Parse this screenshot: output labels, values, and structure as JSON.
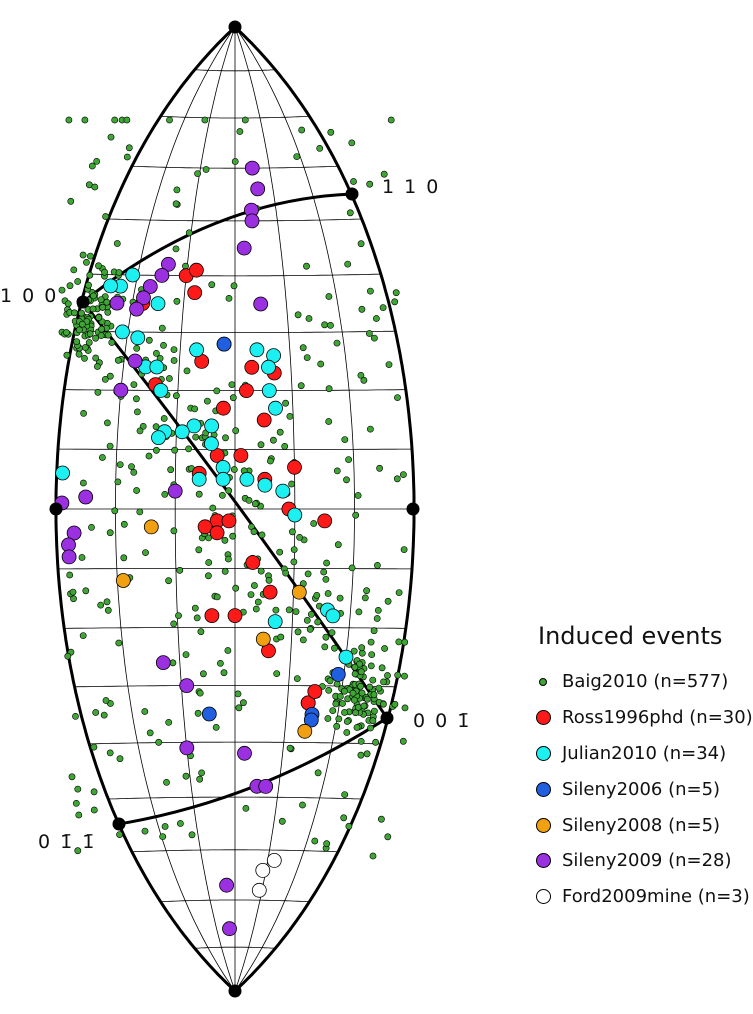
{
  "chart_data": {
    "type": "scatter",
    "projection": "Hudson / source-type lune (equal-area)",
    "title": "",
    "grid": true,
    "legend": {
      "title": "Induced events",
      "placement": "right",
      "entries": [
        {
          "name": "Baig2010",
          "label": "Baig2010 (n=577)",
          "color": "#3fa535",
          "size": "small"
        },
        {
          "name": "Ross1996phd",
          "label": "Ross1996phd (n=30)",
          "color": "#ff1a1a",
          "size": "large"
        },
        {
          "name": "Julian2010",
          "label": "Julian2010 (n=34)",
          "color": "#1cf0f0",
          "size": "large"
        },
        {
          "name": "Sileny2006",
          "label": "Sileny2006 (n=5)",
          "color": "#1f5fe0",
          "size": "large"
        },
        {
          "name": "Sileny2008",
          "label": "Sileny2008 (n=5)",
          "color": "#f0a010",
          "size": "large"
        },
        {
          "name": "Sileny2009",
          "label": "Sileny2009 (n=28)",
          "color": "#9b30e0",
          "size": "large"
        },
        {
          "name": "Ford2009mine",
          "label": "Ford2009mine (n=3)",
          "color": "#ffffff",
          "size": "large"
        }
      ]
    },
    "vertex_labels": [
      {
        "id": "v110",
        "text": "1 1 0"
      },
      {
        "id": "v100",
        "text": "1 0 0"
      },
      {
        "id": "v00m1",
        "text": "0 0 1̄"
      },
      {
        "id": "v0m1m1",
        "text": "0 1̄ 1̄"
      }
    ],
    "axes": {
      "gamma_range_deg": [
        -30,
        30
      ],
      "delta_range_deg": [
        -90,
        90
      ]
    },
    "series": [
      {
        "name": "Ross1996phd",
        "color": "#ff1a1a",
        "points": [
          [
            -8,
            37
          ],
          [
            -18,
            35
          ],
          [
            -6,
            25
          ],
          [
            -14,
            21
          ],
          [
            2,
            20
          ],
          [
            -2,
            17
          ],
          [
            -3,
            9
          ],
          [
            1,
            9
          ],
          [
            5,
            15
          ],
          [
            -6,
            6
          ],
          [
            5,
            5
          ],
          [
            10,
            7
          ],
          [
            9,
            0
          ],
          [
            -3,
            -2
          ],
          [
            -1,
            -2
          ],
          [
            -5,
            -3
          ],
          [
            -3,
            -4
          ],
          [
            3,
            -9
          ],
          [
            6,
            -14
          ],
          [
            -4,
            -18
          ],
          [
            0,
            -18
          ],
          [
            6,
            -24
          ],
          [
            15,
            -2
          ],
          [
            14,
            -33
          ],
          [
            14,
            -33
          ],
          [
            15,
            -31
          ],
          [
            -10,
            40
          ],
          [
            -8,
            41
          ],
          [
            7,
            23
          ],
          [
            3,
            24
          ]
        ]
      },
      {
        "name": "Julian2010",
        "color": "#1cf0f0",
        "points": [
          [
            -21,
            40
          ],
          [
            -23,
            38
          ],
          [
            -15,
            35
          ],
          [
            -18,
            29
          ],
          [
            -16,
            24
          ],
          [
            -14,
            24
          ],
          [
            -13,
            20
          ],
          [
            -7,
            27
          ],
          [
            -2,
            28
          ],
          [
            4,
            27
          ],
          [
            7,
            26
          ],
          [
            6,
            24
          ],
          [
            6,
            20
          ],
          [
            7,
            17
          ],
          [
            -7,
            14
          ],
          [
            -4,
            14
          ],
          [
            -9,
            13
          ],
          [
            -4,
            11
          ],
          [
            -12,
            13
          ],
          [
            -2,
            7
          ],
          [
            -2,
            5
          ],
          [
            2,
            5
          ],
          [
            5,
            4
          ],
          [
            8,
            3
          ],
          [
            10,
            -1
          ],
          [
            -29,
            6
          ],
          [
            -25,
            38
          ],
          [
            16,
            -17
          ],
          [
            17,
            -18
          ],
          [
            20,
            -25
          ],
          [
            7,
            -19
          ],
          [
            -21,
            30
          ],
          [
            -13,
            12
          ],
          [
            -6,
            5
          ]
        ]
      },
      {
        "name": "Sileny2006",
        "color": "#1f5fe0",
        "points": [
          [
            -2,
            28
          ],
          [
            19,
            -28
          ],
          [
            15,
            -35
          ],
          [
            -5,
            -35
          ],
          [
            15,
            -36
          ]
        ]
      },
      {
        "name": "Sileny2008",
        "color": "#f0a010",
        "points": [
          [
            -14,
            -3
          ],
          [
            -19,
            -12
          ],
          [
            5,
            -22
          ],
          [
            11,
            -14
          ],
          [
            14,
            -38
          ]
        ]
      },
      {
        "name": "Sileny2009",
        "color": "#9b30e0",
        "points": [
          [
            5,
            60
          ],
          [
            6,
            56
          ],
          [
            4,
            52
          ],
          [
            4,
            50
          ],
          [
            2,
            45
          ],
          [
            -14,
            42
          ],
          [
            -15,
            40
          ],
          [
            -17,
            38
          ],
          [
            -18,
            36
          ],
          [
            -19,
            34
          ],
          [
            -23,
            35
          ],
          [
            -18,
            25
          ],
          [
            5,
            35
          ],
          [
            -25,
            2
          ],
          [
            -29,
            1
          ],
          [
            -27,
            -4
          ],
          [
            -28,
            -6
          ],
          [
            -28,
            -8
          ],
          [
            -10,
            3
          ],
          [
            -9,
            -30
          ],
          [
            -10,
            -41
          ],
          [
            2,
            -42
          ],
          [
            5,
            -48
          ],
          [
            7,
            -48
          ],
          [
            -3,
            -67
          ],
          [
            -3,
            -76
          ],
          [
            -13,
            -26
          ],
          [
            -20,
            20
          ]
        ]
      },
      {
        "name": "Ford2009mine",
        "color": "#ffffff",
        "points": [
          [
            12,
            -62
          ],
          [
            9,
            -64
          ],
          [
            9,
            -68
          ]
        ]
      }
    ],
    "baig2010_count": 577
  }
}
